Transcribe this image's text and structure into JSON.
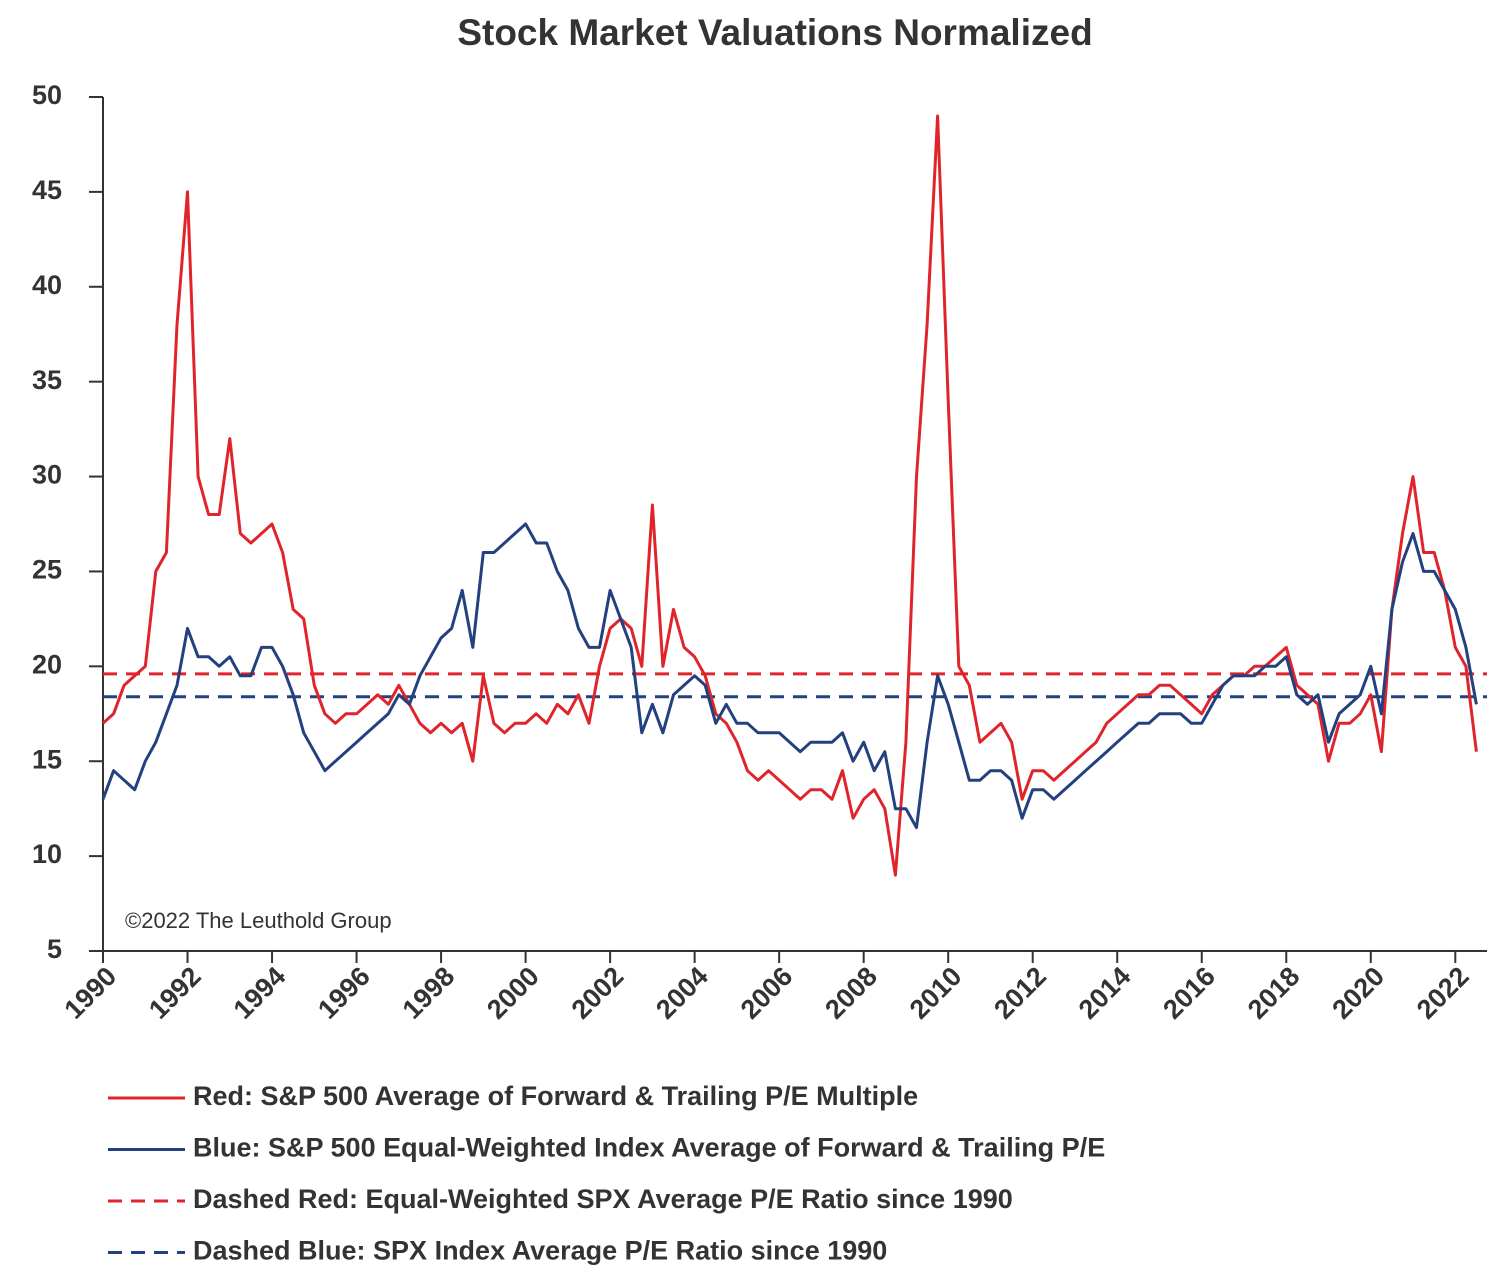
{
  "chart_data": {
    "type": "line",
    "title": "Stock Market Valuations Normalized",
    "annotation": "©2022 The Leuthold Group",
    "x": [
      1990,
      1990.25,
      1990.5,
      1990.75,
      1991,
      1991.25,
      1991.5,
      1991.75,
      1992,
      1992.25,
      1992.5,
      1992.75,
      1993,
      1993.25,
      1993.5,
      1993.75,
      1994,
      1994.25,
      1994.5,
      1994.75,
      1995,
      1995.25,
      1995.5,
      1995.75,
      1996,
      1996.25,
      1996.5,
      1996.75,
      1997,
      1997.25,
      1997.5,
      1997.75,
      1998,
      1998.25,
      1998.5,
      1998.75,
      1999,
      1999.25,
      1999.5,
      1999.75,
      2000,
      2000.25,
      2000.5,
      2000.75,
      2001,
      2001.25,
      2001.5,
      2001.75,
      2002,
      2002.25,
      2002.5,
      2002.75,
      2003,
      2003.25,
      2003.5,
      2003.75,
      2004,
      2004.25,
      2004.5,
      2004.75,
      2005,
      2005.25,
      2005.5,
      2005.75,
      2006,
      2006.25,
      2006.5,
      2006.75,
      2007,
      2007.25,
      2007.5,
      2007.75,
      2008,
      2008.25,
      2008.5,
      2008.75,
      2009,
      2009.25,
      2009.5,
      2009.75,
      2010,
      2010.25,
      2010.5,
      2010.75,
      2011,
      2011.25,
      2011.5,
      2011.75,
      2012,
      2012.25,
      2012.5,
      2012.75,
      2013,
      2013.25,
      2013.5,
      2013.75,
      2014,
      2014.25,
      2014.5,
      2014.75,
      2015,
      2015.25,
      2015.5,
      2015.75,
      2016,
      2016.25,
      2016.5,
      2016.75,
      2017,
      2017.25,
      2017.5,
      2017.75,
      2018,
      2018.25,
      2018.5,
      2018.75,
      2019,
      2019.25,
      2019.5,
      2019.75,
      2020,
      2020.25,
      2020.5,
      2020.75,
      2021,
      2021.25,
      2021.5,
      2021.75,
      2022,
      2022.25,
      2022.5
    ],
    "series": [
      {
        "name": "Red: S&P 500 Average of Forward & Trailing P/E Multiple",
        "color": "#e0242c",
        "values": [
          17,
          17.5,
          19,
          19.5,
          20,
          25,
          26,
          38,
          45,
          30,
          28,
          28,
          32,
          27,
          26.5,
          27,
          27.5,
          26,
          23,
          22.5,
          19,
          17.5,
          17,
          17.5,
          17.5,
          18,
          18.5,
          18,
          19,
          18,
          17,
          16.5,
          17,
          16.5,
          17,
          15,
          19.5,
          17,
          16.5,
          17,
          17,
          17.5,
          17,
          18,
          17.5,
          18.5,
          17,
          20,
          22,
          22.5,
          22,
          20,
          28.5,
          20,
          23,
          21,
          20.5,
          19.5,
          17.5,
          17,
          16,
          14.5,
          14,
          14.5,
          14,
          13.5,
          13,
          13.5,
          13.5,
          13,
          14.5,
          12,
          13,
          13.5,
          12.5,
          9,
          16,
          30,
          38,
          49,
          34,
          20,
          19,
          16,
          16.5,
          17,
          16,
          13,
          14.5,
          14.5,
          14,
          14.5,
          15,
          15.5,
          16,
          17,
          17.5,
          18,
          18.5,
          18.5,
          19,
          19,
          18.5,
          18,
          17.5,
          18.5,
          19,
          19.5,
          19.5,
          20,
          20,
          20.5,
          21,
          19,
          18.5,
          18,
          15,
          17,
          17,
          17.5,
          18.5,
          15.5,
          23,
          27,
          30,
          26,
          26,
          24,
          21,
          20,
          15.5
        ]
      },
      {
        "name": "Blue: S&P 500 Equal-Weighted Index Average of Forward & Trailing P/E",
        "color": "#23407f",
        "values": [
          13,
          14.5,
          14,
          13.5,
          15,
          16,
          17.5,
          19,
          22,
          20.5,
          20.5,
          20,
          20.5,
          19.5,
          19.5,
          21,
          21,
          20,
          18.5,
          16.5,
          15.5,
          14.5,
          15,
          15.5,
          16,
          16.5,
          17,
          17.5,
          18.5,
          18,
          19.5,
          20.5,
          21.5,
          22,
          24,
          21,
          26,
          26,
          26.5,
          27,
          27.5,
          26.5,
          26.5,
          25,
          24,
          22,
          21,
          21,
          24,
          22.5,
          21,
          16.5,
          18,
          16.5,
          18.5,
          19,
          19.5,
          19,
          17,
          18,
          17,
          17,
          16.5,
          16.5,
          16.5,
          16,
          15.5,
          16,
          16,
          16,
          16.5,
          15,
          16,
          14.5,
          15.5,
          12.5,
          12.5,
          11.5,
          16,
          19.5,
          18,
          16,
          14,
          14,
          14.5,
          14.5,
          14,
          12,
          13.5,
          13.5,
          13,
          13.5,
          14,
          14.5,
          15,
          15.5,
          16,
          16.5,
          17,
          17,
          17.5,
          17.5,
          17.5,
          17,
          17,
          18,
          19,
          19.5,
          19.5,
          19.5,
          20,
          20,
          20.5,
          18.5,
          18,
          18.5,
          16,
          17.5,
          18,
          18.5,
          20,
          17.5,
          23,
          25.5,
          27,
          25,
          25,
          24,
          23,
          21,
          18
        ]
      }
    ],
    "reference_lines": [
      {
        "name": "Dashed Red: Equal-Weighted SPX Average P/E Ratio since 1990",
        "color": "#e0242c",
        "value": 19.6
      },
      {
        "name": "Dashed Blue: SPX Index Average P/E Ratio since 1990",
        "color": "#23407f",
        "value": 18.4
      }
    ],
    "xlim": [
      1990,
      2022.75
    ],
    "xticks": [
      1990,
      1992,
      1994,
      1996,
      1998,
      2000,
      2002,
      2004,
      2006,
      2008,
      2010,
      2012,
      2014,
      2016,
      2018,
      2020,
      2022
    ],
    "ylim": [
      5,
      50
    ],
    "yticks": [
      5,
      10,
      15,
      20,
      25,
      30,
      35,
      40,
      45,
      50
    ]
  }
}
